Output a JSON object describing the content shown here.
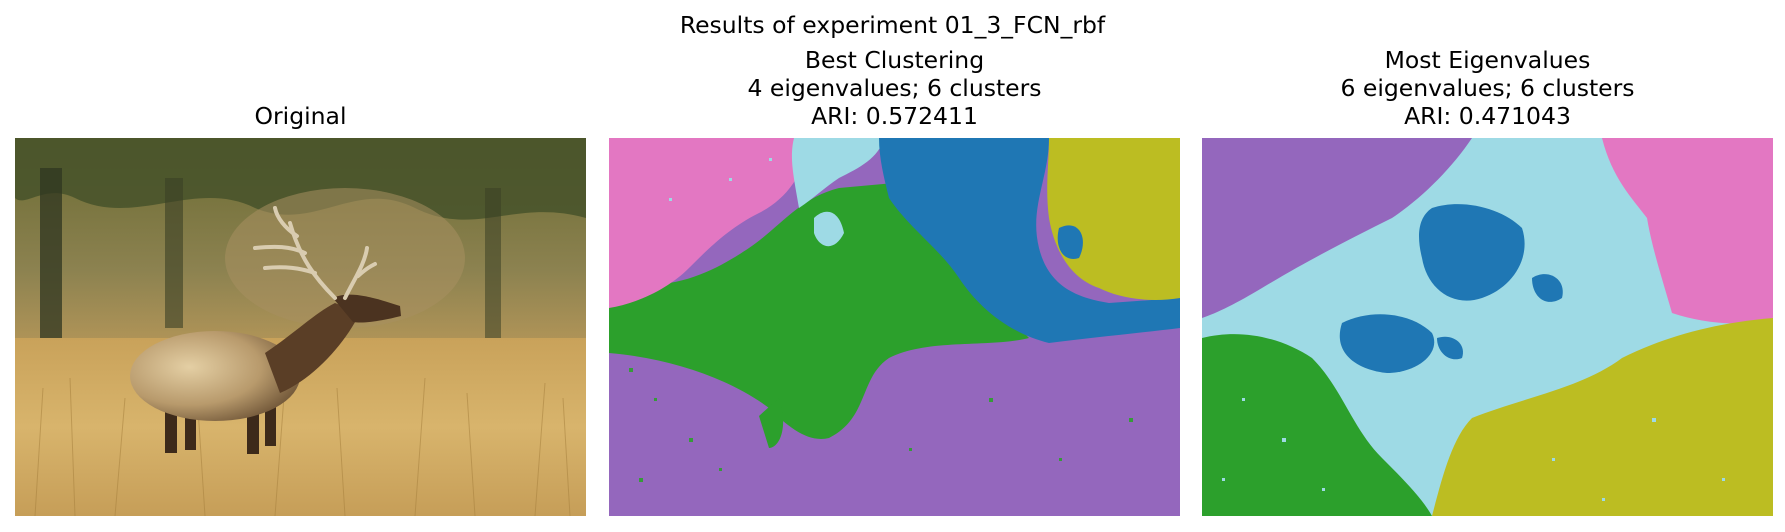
{
  "figure": {
    "suptitle": "Results of experiment 01_3_FCN_rbf"
  },
  "panels": [
    {
      "title": "Original",
      "image_subject": "elk-bugling-in-golden-grass"
    },
    {
      "title": "Best Clustering\n4 eigenvalues; 6 clusters\nARI: 0.572411",
      "eigenvalues": 4,
      "clusters": 6,
      "ari": 0.572411,
      "cluster_colors": [
        "#e377c2",
        "#9edae5",
        "#1f77b4",
        "#bcbd22",
        "#2ca02c",
        "#9467bd"
      ]
    },
    {
      "title": "Most Eigenvalues\n6 eigenvalues; 6 clusters\nARI: 0.471043",
      "eigenvalues": 6,
      "clusters": 6,
      "ari": 0.471043,
      "cluster_colors": [
        "#9467bd",
        "#9edae5",
        "#1f77b4",
        "#e377c2",
        "#2ca02c",
        "#bcbd22"
      ]
    }
  ]
}
